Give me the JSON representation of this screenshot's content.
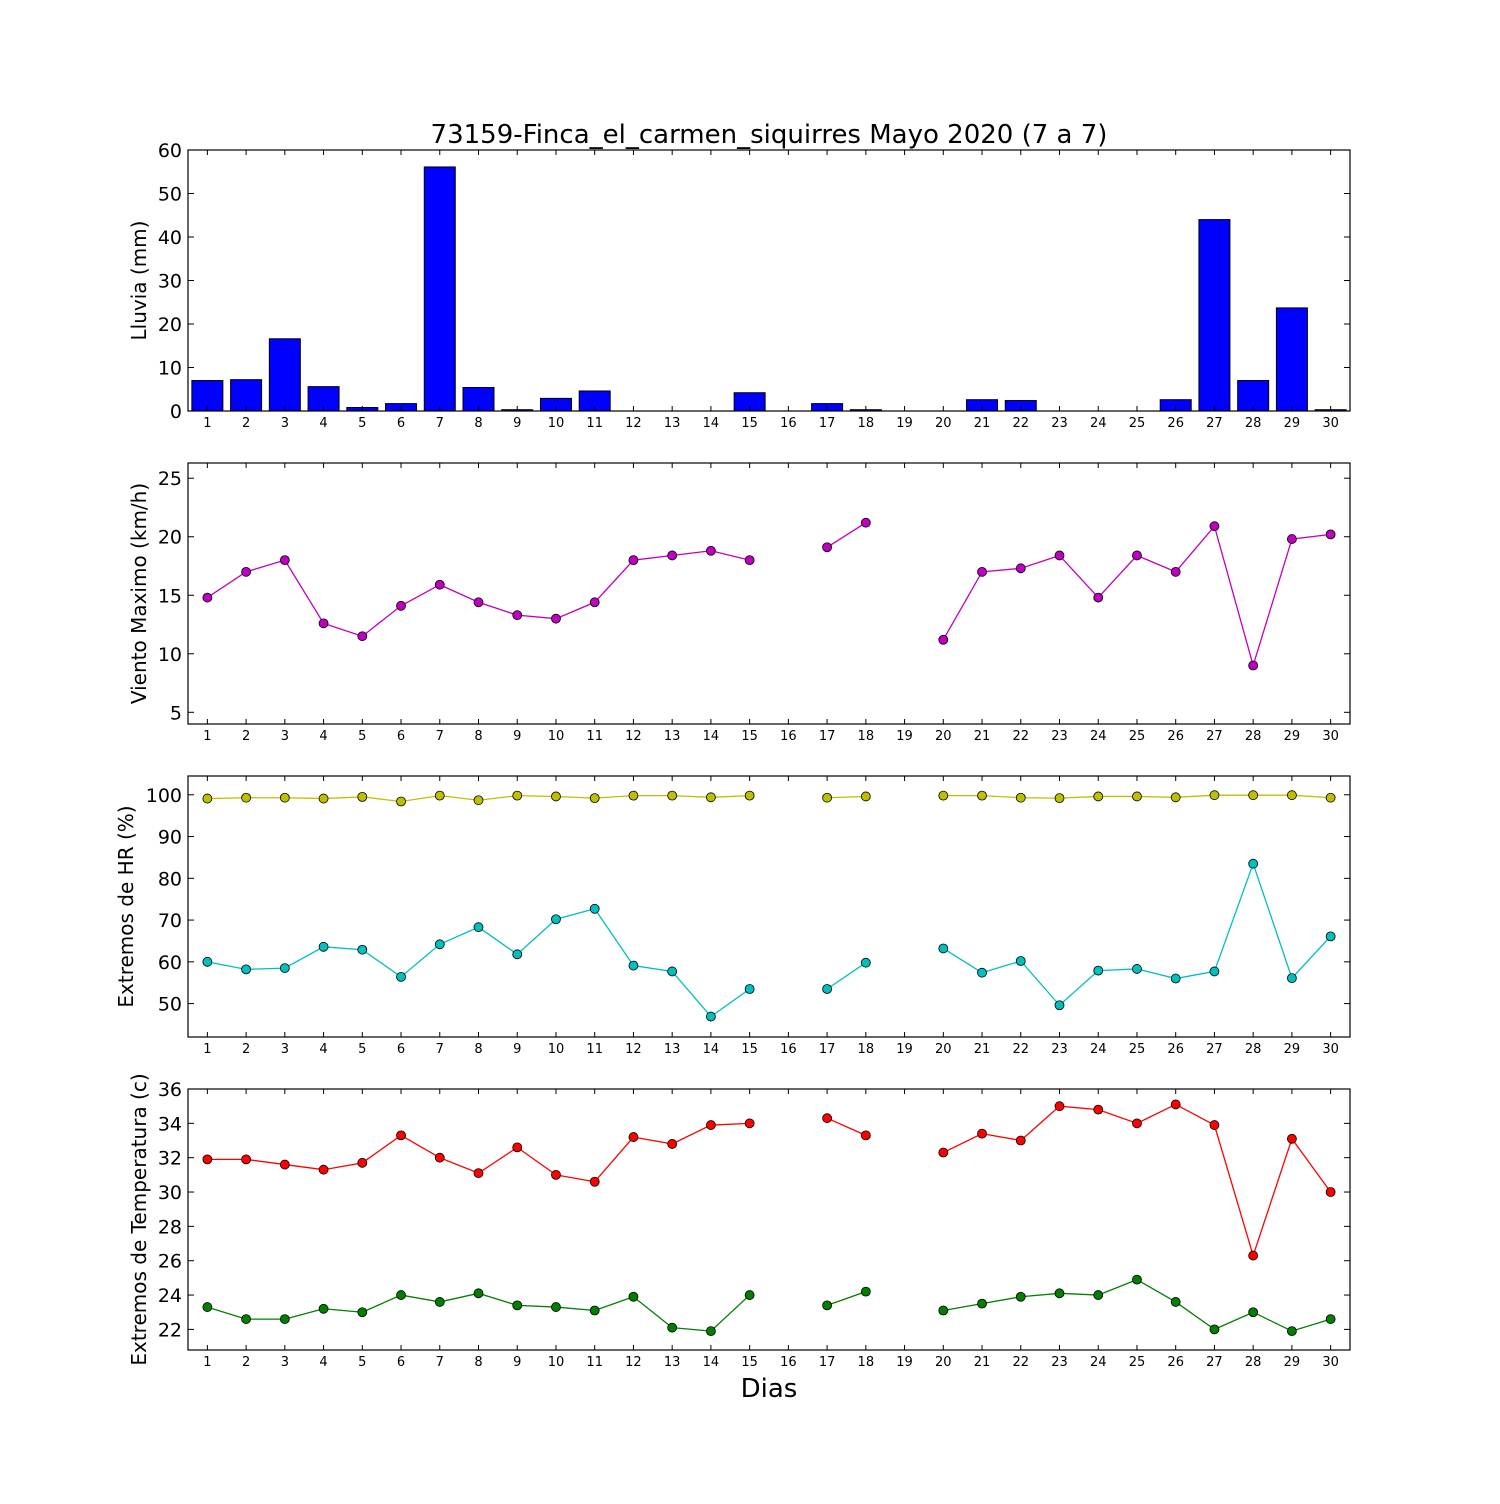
{
  "chart_data": {
    "title": "73159-Finca_el_carmen_siquirres Mayo 2020  (7 a 7)",
    "xlabel": "Dias",
    "days": [
      1,
      2,
      3,
      4,
      5,
      6,
      7,
      8,
      9,
      10,
      11,
      12,
      13,
      14,
      15,
      16,
      17,
      18,
      19,
      20,
      21,
      22,
      23,
      24,
      25,
      26,
      27,
      28,
      29,
      30
    ],
    "panels": [
      {
        "type": "bar",
        "ylabel": "Lluvia (mm)",
        "ylim": [
          0,
          60
        ],
        "yticks": [
          0,
          10,
          20,
          30,
          40,
          50,
          60
        ],
        "series": [
          {
            "color": "#0000ff",
            "values": [
              7.0,
              7.2,
              16.6,
              5.6,
              0.8,
              1.7,
              56.1,
              5.4,
              0.3,
              2.9,
              4.6,
              0,
              0,
              0,
              4.2,
              0,
              1.7,
              0.3,
              0,
              0,
              2.6,
              2.4,
              0,
              0,
              0,
              2.6,
              44.0,
              7.0,
              23.7,
              0.3
            ]
          }
        ]
      },
      {
        "type": "line",
        "ylabel": "Viento Maximo (km/h)",
        "ylim": [
          4,
          26.3
        ],
        "yticks": [
          5,
          10,
          15,
          20,
          25
        ],
        "series": [
          {
            "color": "#bf00bf",
            "values": [
              14.8,
              17.0,
              18.0,
              12.6,
              11.5,
              14.1,
              15.9,
              14.4,
              13.3,
              13.0,
              14.4,
              18.0,
              18.4,
              18.8,
              18.0,
              null,
              19.1,
              21.2,
              null,
              11.2,
              17.0,
              17.3,
              18.4,
              14.8,
              18.4,
              17.0,
              20.9,
              9.0,
              19.8,
              20.2
            ]
          }
        ]
      },
      {
        "type": "line",
        "ylabel": "Extremos de HR (%)",
        "ylim": [
          42,
          104.5
        ],
        "yticks": [
          50,
          60,
          70,
          80,
          90,
          100
        ],
        "series": [
          {
            "color": "#bfbf00",
            "values": [
              99.1,
              99.3,
              99.3,
              99.1,
              99.5,
              98.4,
              99.8,
              98.7,
              99.8,
              99.6,
              99.2,
              99.8,
              99.8,
              99.4,
              99.8,
              null,
              99.3,
              99.6,
              null,
              99.8,
              99.8,
              99.3,
              99.2,
              99.6,
              99.6,
              99.4,
              99.9,
              99.9,
              99.9,
              99.3
            ]
          },
          {
            "color": "#00bfbf",
            "values": [
              60.0,
              58.2,
              58.5,
              63.6,
              62.9,
              56.4,
              64.2,
              68.3,
              61.8,
              70.2,
              72.7,
              59.1,
              57.7,
              46.9,
              53.5,
              null,
              53.5,
              59.8,
              null,
              63.2,
              57.4,
              60.2,
              49.6,
              57.9,
              58.3,
              56.0,
              57.7,
              83.5,
              56.1,
              66.1
            ]
          }
        ]
      },
      {
        "type": "line",
        "ylabel": "Extremos de Temperatura (c)",
        "ylim": [
          20.8,
          36
        ],
        "yticks": [
          22,
          24,
          26,
          28,
          30,
          32,
          34,
          36
        ],
        "series": [
          {
            "color": "#ff0000",
            "values": [
              31.9,
              31.9,
              31.6,
              31.3,
              31.7,
              33.3,
              32.0,
              31.1,
              32.6,
              31.0,
              30.6,
              33.2,
              32.8,
              33.9,
              34.0,
              null,
              34.3,
              33.3,
              null,
              32.3,
              33.4,
              33.0,
              35.0,
              34.8,
              34.0,
              35.1,
              33.9,
              26.3,
              33.1,
              30.0
            ]
          },
          {
            "color": "#007f00",
            "values": [
              23.3,
              22.6,
              22.6,
              23.2,
              23.0,
              24.0,
              23.6,
              24.1,
              23.4,
              23.3,
              23.1,
              23.9,
              22.1,
              21.9,
              24.0,
              null,
              23.4,
              24.2,
              null,
              23.1,
              23.5,
              23.9,
              24.1,
              24.0,
              24.9,
              23.6,
              22.0,
              23.0,
              21.9,
              22.6
            ]
          }
        ]
      }
    ]
  }
}
